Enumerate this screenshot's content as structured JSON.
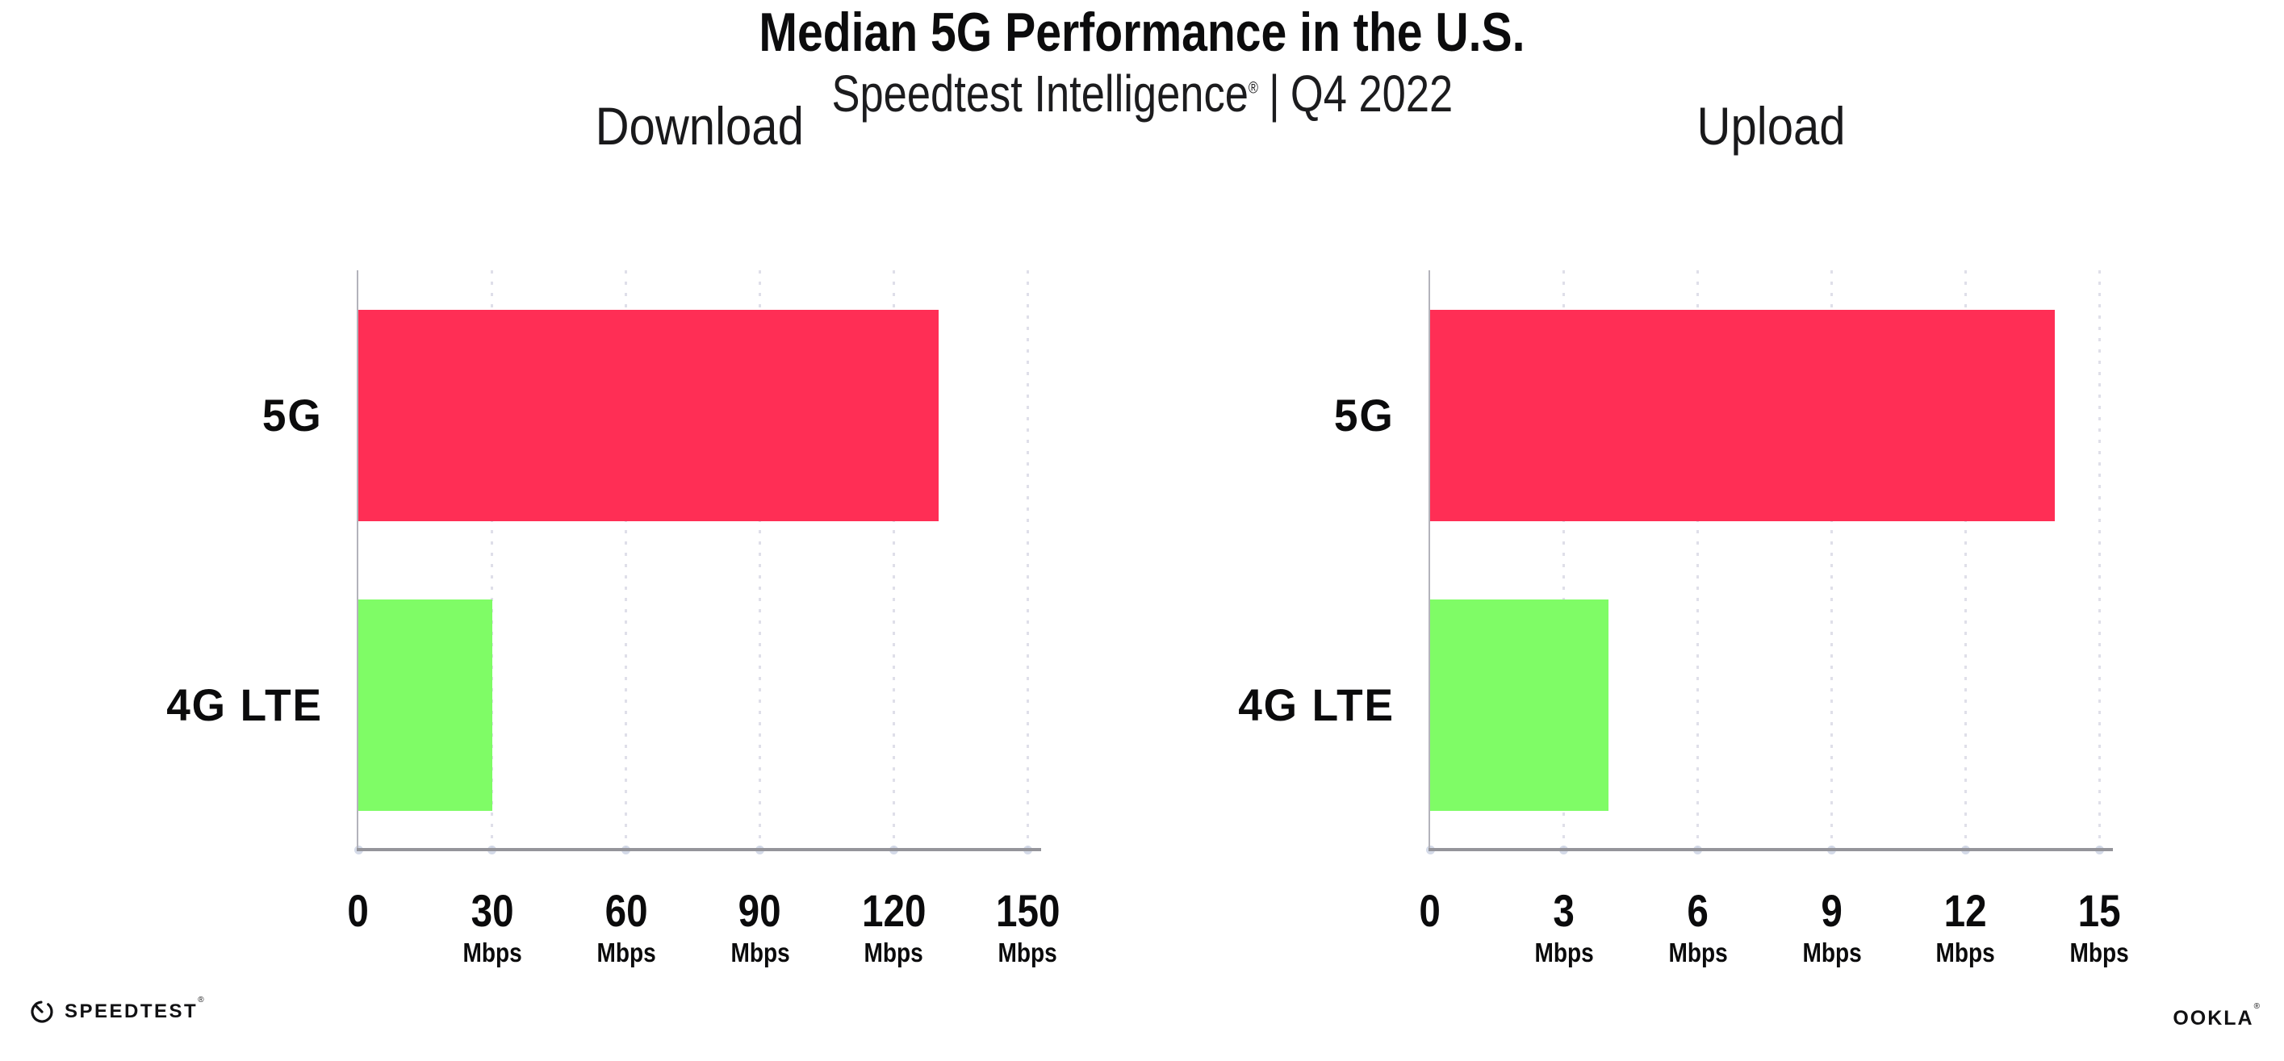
{
  "header": {
    "title": "Median 5G Performance in the U.S.",
    "subtitle": {
      "brand": "Speedtest Intelligence",
      "registered_mark": "®",
      "separator": "|",
      "period": "Q4 2022"
    }
  },
  "chart_data": [
    {
      "type": "bar",
      "orientation": "horizontal",
      "title": "Download",
      "categories": [
        "5G",
        "4G LTE"
      ],
      "values": [
        130,
        30
      ],
      "unit": "Mbps",
      "xlabel": "",
      "ylabel": "",
      "xticks": [
        0,
        30,
        60,
        90,
        120,
        150
      ],
      "xlim": [
        0,
        153
      ],
      "grid": "dotted-vertical",
      "legend": "none",
      "bar_colors": [
        "#FF2E55",
        "#7FFC66"
      ]
    },
    {
      "type": "bar",
      "orientation": "horizontal",
      "title": "Upload",
      "categories": [
        "5G",
        "4G LTE"
      ],
      "values": [
        14,
        4
      ],
      "unit": "Mbps",
      "xlabel": "",
      "ylabel": "",
      "xticks": [
        0,
        3,
        6,
        9,
        12,
        15
      ],
      "xlim": [
        0,
        15.3
      ],
      "grid": "dotted-vertical",
      "legend": "none",
      "bar_colors": [
        "#FF2E55",
        "#7FFC66"
      ]
    }
  ],
  "palette": {
    "bar_5g": "#FF2E55",
    "bar_4g_lte": "#7FFC66",
    "axis_line": "#94949A",
    "gridline": "#DFDFE9"
  },
  "footer": {
    "speedtest_logo": {
      "icon": "speedometer-gauge-icon",
      "label": "SPEEDTEST",
      "mark": "®"
    },
    "ookla_logo": {
      "label": "OOKLA",
      "mark": "®"
    }
  }
}
